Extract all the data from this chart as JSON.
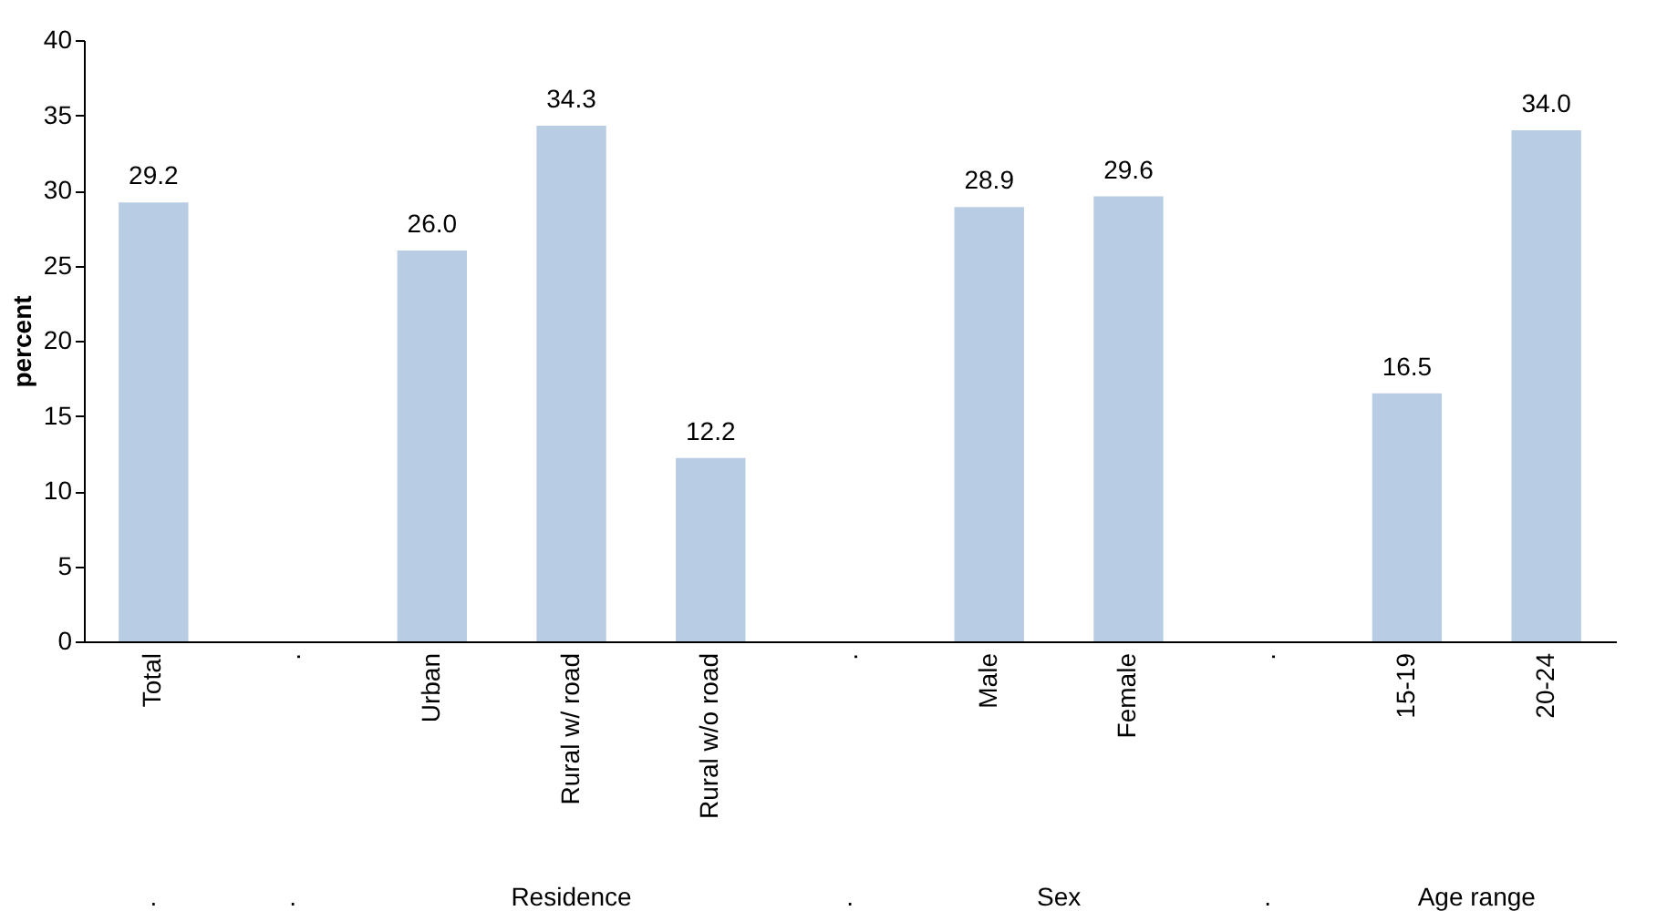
{
  "chart_data": {
    "type": "bar",
    "ylabel": "percent",
    "categories": [
      "Total",
      ".",
      "Urban",
      "Rural w/ road",
      "Rural w/o road",
      ".",
      "Male",
      "Female",
      ".",
      "15-19",
      "20-24"
    ],
    "values": [
      29.2,
      null,
      26.0,
      34.3,
      12.2,
      null,
      28.9,
      29.6,
      null,
      16.5,
      34.0
    ],
    "color": "#b8cce4",
    "ylim": [
      0,
      40
    ],
    "yticks": [
      0,
      5,
      10,
      15,
      20,
      25,
      30,
      35,
      40
    ],
    "grid": false,
    "value_labels": [
      "29.2",
      null,
      "26.0",
      "34.3",
      "12.2",
      null,
      "28.9",
      "29.6",
      null,
      "16.5",
      "34.0"
    ],
    "annotations": [
      ".",
      ".",
      "Residence",
      ".",
      "Sex",
      ".",
      "Age range"
    ]
  }
}
